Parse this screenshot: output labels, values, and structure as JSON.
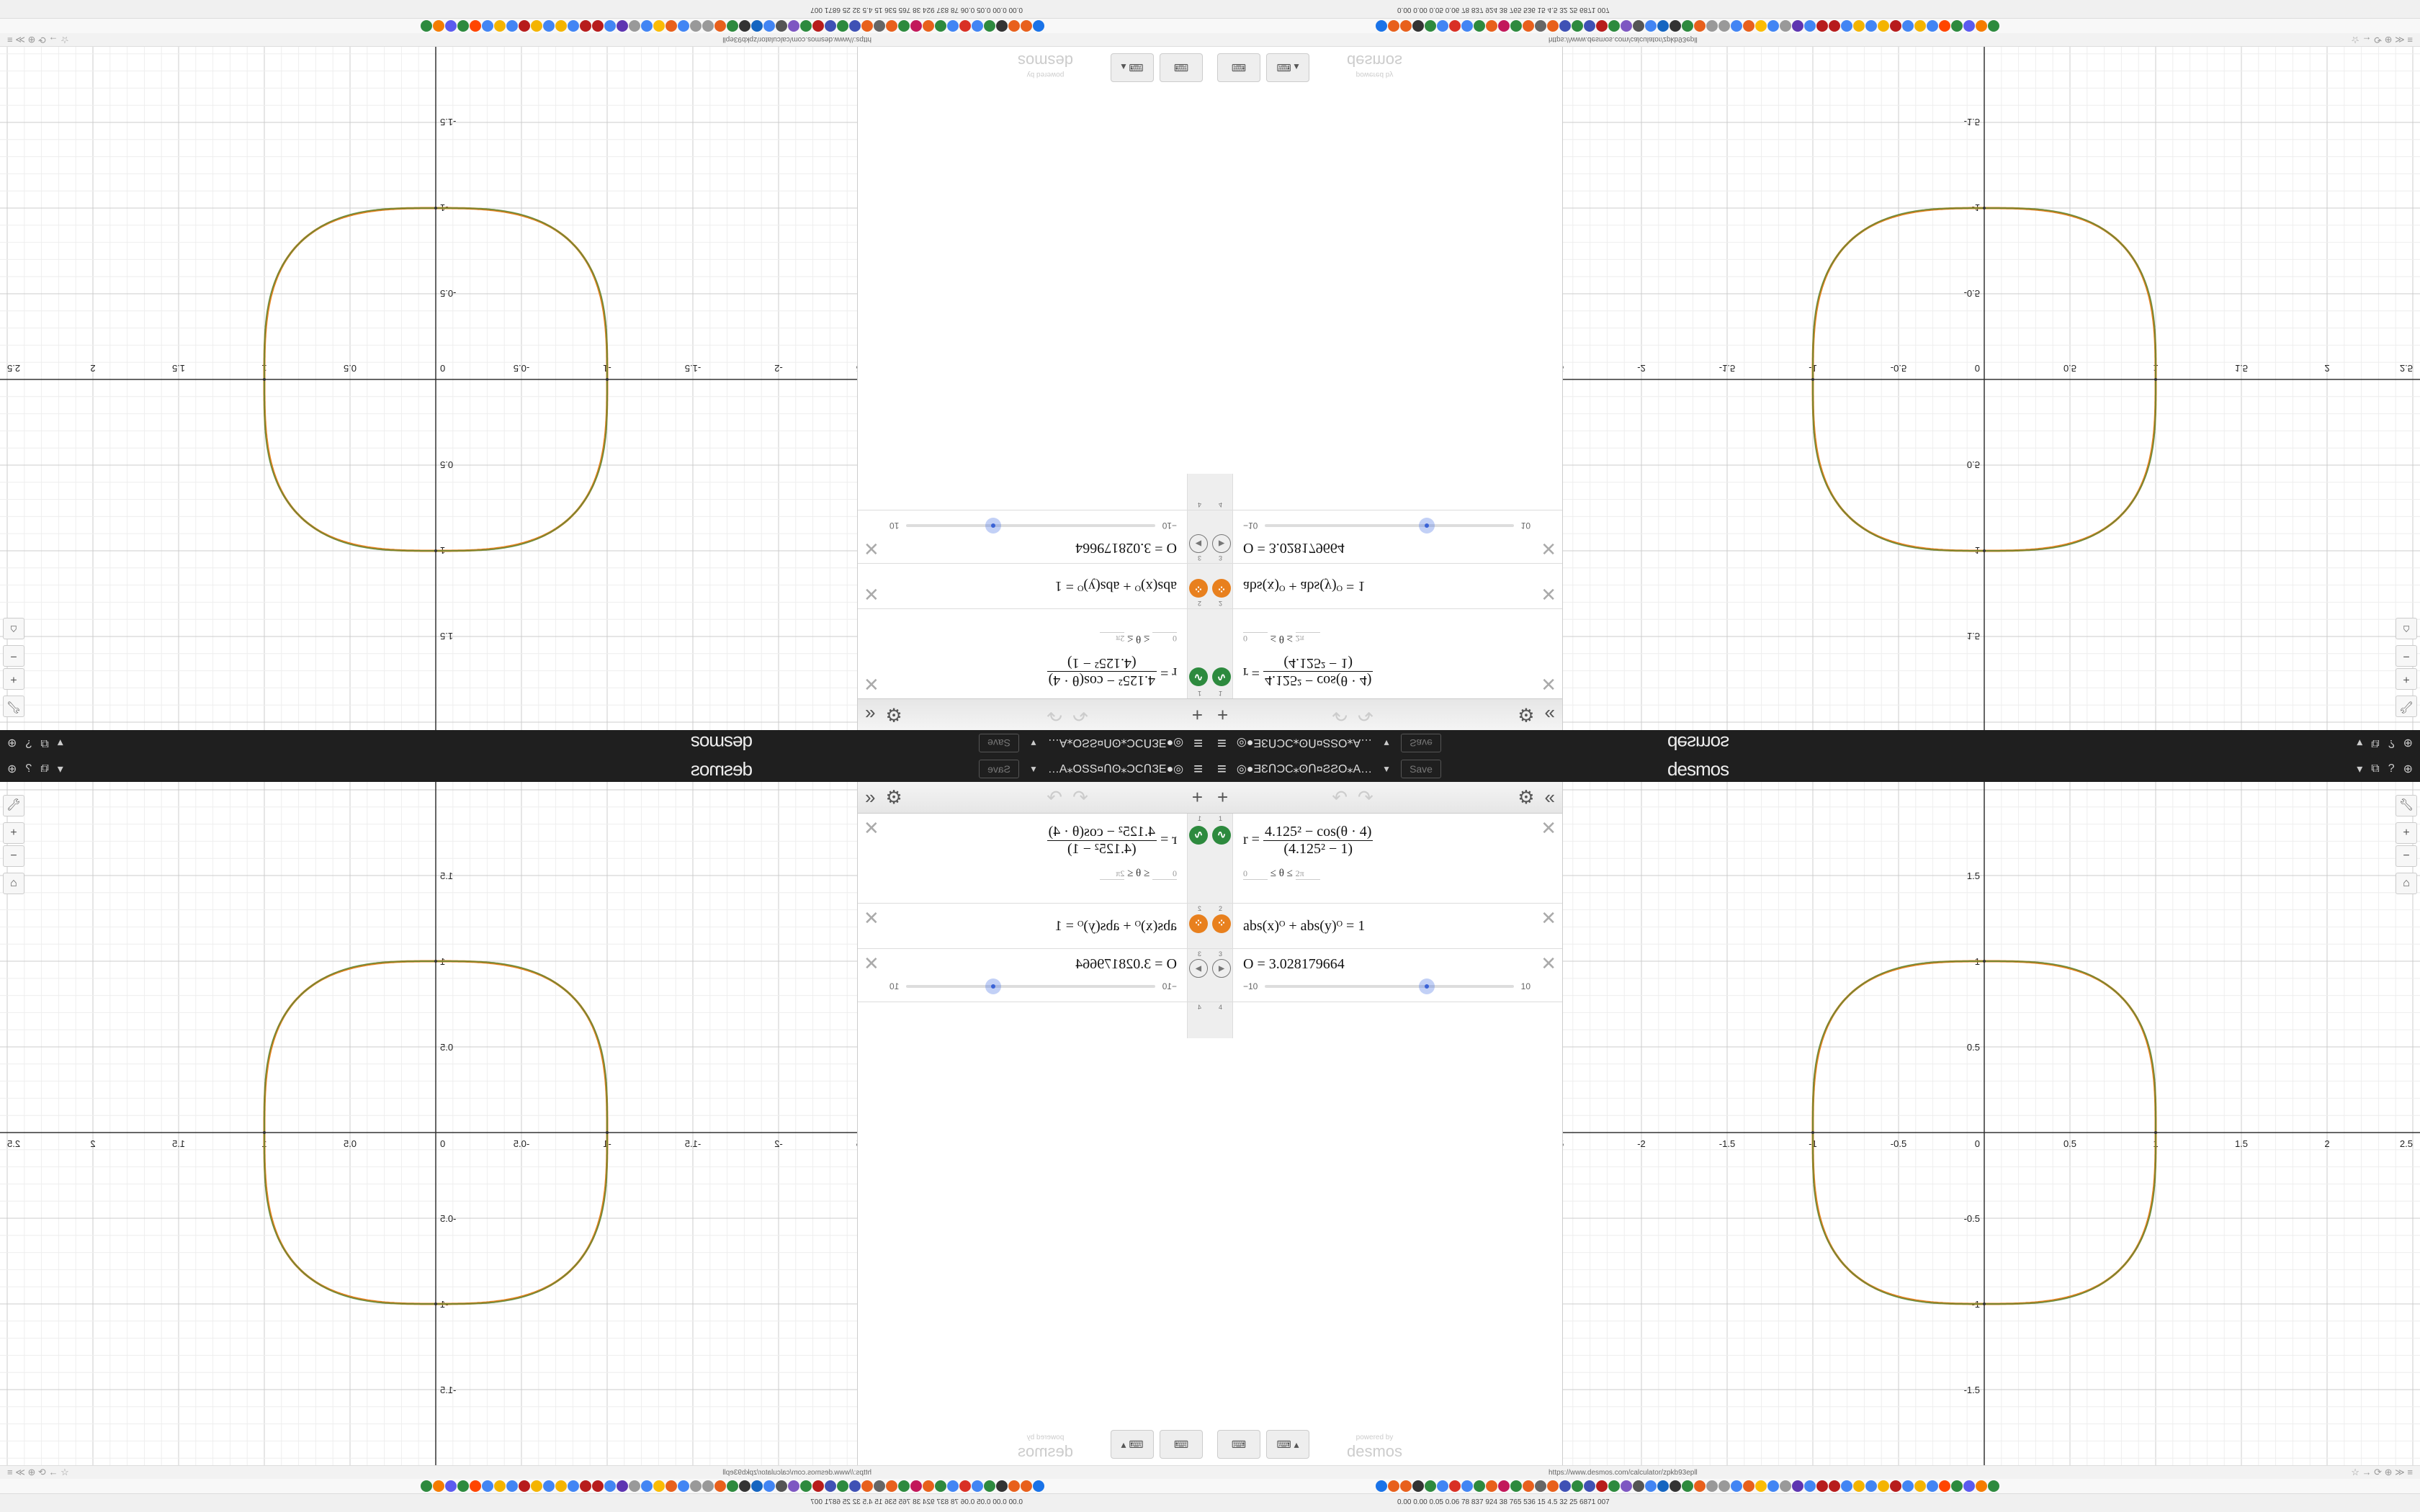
{
  "header": {
    "menu_icon": "hamburger-icon",
    "graph_title": "◎●ƎƐՈƆC⁎ʘՈ¤ƧƧO⁎A…",
    "save_label": "Save",
    "logo": "desmos",
    "icons": [
      "share-icon",
      "help-icon",
      "globe-icon"
    ]
  },
  "panel": {
    "expressions": [
      {
        "num": "1",
        "color": "#2d8a3e",
        "icon": "wave-icon",
        "lhs": "r =",
        "num_text": "4.125² − cos(θ · 4)",
        "den_text": "(4.125² − 1)",
        "lower": "0",
        "mid": "≤ θ ≤",
        "upper": "2π"
      },
      {
        "num": "2",
        "color": "#e8801e",
        "icon": "points-icon",
        "latex": "abs(x)ᴼ + abs(y)ᴼ = 1"
      },
      {
        "num": "3",
        "latex": "O = 3.028179664",
        "slider_min": "−10",
        "slider_max": "10",
        "slider_value": 3.028179664
      },
      {
        "num": "4"
      }
    ],
    "powered_by": "powered by",
    "powered_logo": "desmos"
  },
  "graph": {
    "x_ticks": [
      "-2.5",
      "-2",
      "-1.5",
      "-1",
      "-0.5",
      "0",
      "0.5",
      "1",
      "1.5",
      "2",
      "2.5"
    ],
    "y_ticks": [
      "-1.5",
      "-1",
      "-0.5",
      "0.5",
      "1",
      "1.5"
    ],
    "exponent": 3.028179664,
    "curve_color": "#8a7a1e"
  },
  "browser": {
    "url": "https://www.desmos.com/calculator/zpkb93epll",
    "bookmark_colors": [
      "#1a73e8",
      "#e8601c",
      "#e8601c",
      "#333",
      "#2d8a3e",
      "#4285f4",
      "#d93025",
      "#4285f4",
      "#2d8a3e",
      "#e8601c",
      "#c2185b",
      "#2d8a3e",
      "#e8601c",
      "#666",
      "#e8601c",
      "#3f51b5",
      "#2d8a3e",
      "#3f51b5",
      "#b71c1c",
      "#2d8a3e",
      "#7e57c2",
      "#555",
      "#4285f4",
      "#1565c0",
      "#333",
      "#2d8a3e",
      "#e8601c",
      "#999",
      "#999",
      "#4285f4",
      "#e8601c",
      "#fbbc04",
      "#4285f4",
      "#999",
      "#5e35b1",
      "#4285f4",
      "#b71c1c",
      "#b71c1c",
      "#4285f4",
      "#f4b400",
      "#4285f4",
      "#f4b400",
      "#b71c1c",
      "#4285f4",
      "#f4b400",
      "#4285f4",
      "#ff4500",
      "#2d8a3e",
      "#5b5bf0",
      "#f57c00",
      "#2d8a3e"
    ],
    "stats": "0.00 0.00 0.05 0.06 78 837 924 38 765 536 15 4.5 32 25 6871 007"
  }
}
